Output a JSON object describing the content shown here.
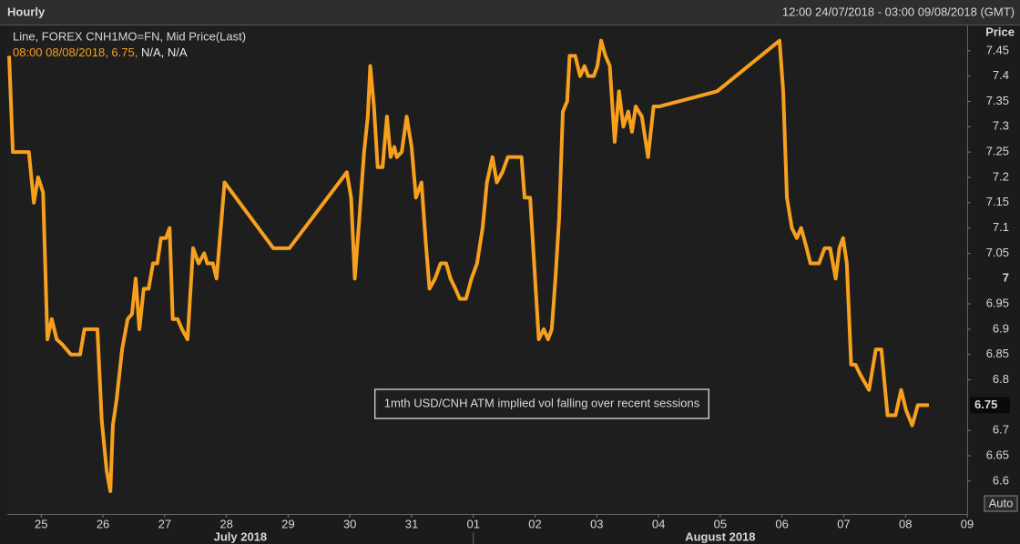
{
  "window": {
    "title": "Hourly",
    "range": "12:00 24/07/2018 - 03:00 09/08/2018 (GMT)",
    "auto_button": "Auto"
  },
  "chart_data": {
    "type": "line",
    "y_label": "Price",
    "cursor_info": "08:00 08/08/2018, 6.75,",
    "cursor_na": "N/A, N/A",
    "annotation": "1mth USD/CNH ATM implied vol falling over recent sessions",
    "x": [
      -0.52,
      -0.46,
      -0.2,
      -0.12,
      -0.05,
      0.03,
      0.1,
      0.17,
      0.25,
      0.34,
      0.48,
      0.63,
      0.7,
      0.91,
      0.98,
      1.06,
      1.12,
      1.16,
      1.22,
      1.31,
      1.4,
      1.47,
      1.53,
      1.59,
      1.66,
      1.74,
      1.81,
      1.88,
      1.94,
      2.02,
      2.08,
      2.13,
      2.21,
      2.28,
      2.37,
      2.46,
      2.55,
      2.64,
      2.69,
      2.78,
      2.84,
      2.97,
      3.76,
      4.02,
      4.95,
      5.02,
      5.08,
      5.16,
      5.23,
      5.29,
      5.33,
      5.39,
      5.45,
      5.53,
      5.6,
      5.66,
      5.72,
      5.76,
      5.84,
      5.92,
      6.0,
      6.07,
      6.16,
      6.23,
      6.29,
      6.38,
      6.47,
      6.56,
      6.63,
      6.71,
      6.78,
      6.88,
      6.97,
      7.06,
      7.15,
      7.22,
      7.31,
      7.38,
      7.47,
      7.56,
      7.67,
      7.78,
      7.83,
      7.92,
      8.0,
      8.06,
      8.14,
      8.21,
      8.27,
      8.33,
      8.39,
      8.45,
      8.52,
      8.56,
      8.65,
      8.73,
      8.8,
      8.86,
      8.95,
      9.01,
      9.07,
      9.14,
      9.21,
      9.29,
      9.36,
      9.43,
      9.51,
      9.57,
      9.63,
      9.73,
      9.83,
      9.92,
      10.01,
      10.95,
      11.96,
      12.02,
      12.08,
      12.16,
      12.24,
      12.31,
      12.4,
      12.46,
      12.6,
      12.69,
      12.78,
      12.87,
      12.93,
      12.99,
      13.05,
      13.12,
      13.19,
      13.27,
      13.41,
      13.52,
      13.61,
      13.71,
      13.84,
      13.93,
      14.01,
      14.11,
      14.2,
      14.38
    ],
    "series": [
      {
        "name": "Line, FOREX CNH1MO=FN, Mid Price(Last)",
        "color": "#f7a01e",
        "values": [
          7.44,
          7.25,
          7.25,
          7.15,
          7.2,
          7.17,
          6.88,
          6.92,
          6.88,
          6.87,
          6.85,
          6.85,
          6.9,
          6.9,
          6.72,
          6.62,
          6.58,
          6.71,
          6.76,
          6.86,
          6.92,
          6.93,
          7.0,
          6.9,
          6.98,
          6.98,
          7.03,
          7.03,
          7.08,
          7.08,
          7.1,
          6.92,
          6.92,
          6.9,
          6.88,
          7.06,
          7.03,
          7.05,
          7.03,
          7.03,
          7.0,
          7.19,
          7.06,
          7.06,
          7.21,
          7.16,
          7.0,
          7.13,
          7.25,
          7.32,
          7.42,
          7.34,
          7.22,
          7.22,
          7.32,
          7.24,
          7.26,
          7.24,
          7.25,
          7.32,
          7.26,
          7.16,
          7.19,
          7.07,
          6.98,
          7.0,
          7.03,
          7.03,
          7.0,
          6.98,
          6.96,
          6.96,
          7.0,
          7.03,
          7.1,
          7.19,
          7.24,
          7.19,
          7.21,
          7.24,
          7.24,
          7.24,
          7.16,
          7.16,
          7.0,
          6.88,
          6.9,
          6.88,
          6.9,
          7.0,
          7.12,
          7.33,
          7.35,
          7.44,
          7.44,
          7.4,
          7.42,
          7.4,
          7.4,
          7.42,
          7.47,
          7.44,
          7.42,
          7.27,
          7.37,
          7.3,
          7.33,
          7.29,
          7.34,
          7.32,
          7.24,
          7.34,
          7.34,
          7.37,
          7.47,
          7.37,
          7.16,
          7.1,
          7.08,
          7.1,
          7.06,
          7.03,
          7.03,
          7.06,
          7.06,
          7.0,
          7.06,
          7.08,
          7.03,
          6.83,
          6.83,
          6.81,
          6.78,
          6.86,
          6.86,
          6.73,
          6.73,
          6.78,
          6.74,
          6.71,
          6.75,
          6.75
        ]
      }
    ],
    "xlim": [
      -0.55,
      15
    ],
    "ylim": [
      6.535,
      7.5
    ],
    "xticks": [
      {
        "value": 0,
        "label": "25"
      },
      {
        "value": 1,
        "label": "26"
      },
      {
        "value": 2,
        "label": "27"
      },
      {
        "value": 3,
        "label": "28"
      },
      {
        "value": 4,
        "label": "29"
      },
      {
        "value": 5,
        "label": "30"
      },
      {
        "value": 6,
        "label": "31"
      },
      {
        "value": 7,
        "label": "01"
      },
      {
        "value": 8,
        "label": "02"
      },
      {
        "value": 9,
        "label": "03"
      },
      {
        "value": 10,
        "label": "04"
      },
      {
        "value": 11,
        "label": "05"
      },
      {
        "value": 12,
        "label": "06"
      },
      {
        "value": 13,
        "label": "07"
      },
      {
        "value": 14,
        "label": "08"
      },
      {
        "value": 15,
        "label": "09"
      }
    ],
    "yticks": [
      7.45,
      7.4,
      7.35,
      7.3,
      7.25,
      7.2,
      7.15,
      7.1,
      7.05,
      7,
      6.95,
      6.9,
      6.85,
      6.8,
      6.7,
      6.65,
      6.6
    ],
    "months": [
      "July 2018",
      "August 2018"
    ],
    "month_boundaries": [
      7
    ],
    "grid": false
  }
}
